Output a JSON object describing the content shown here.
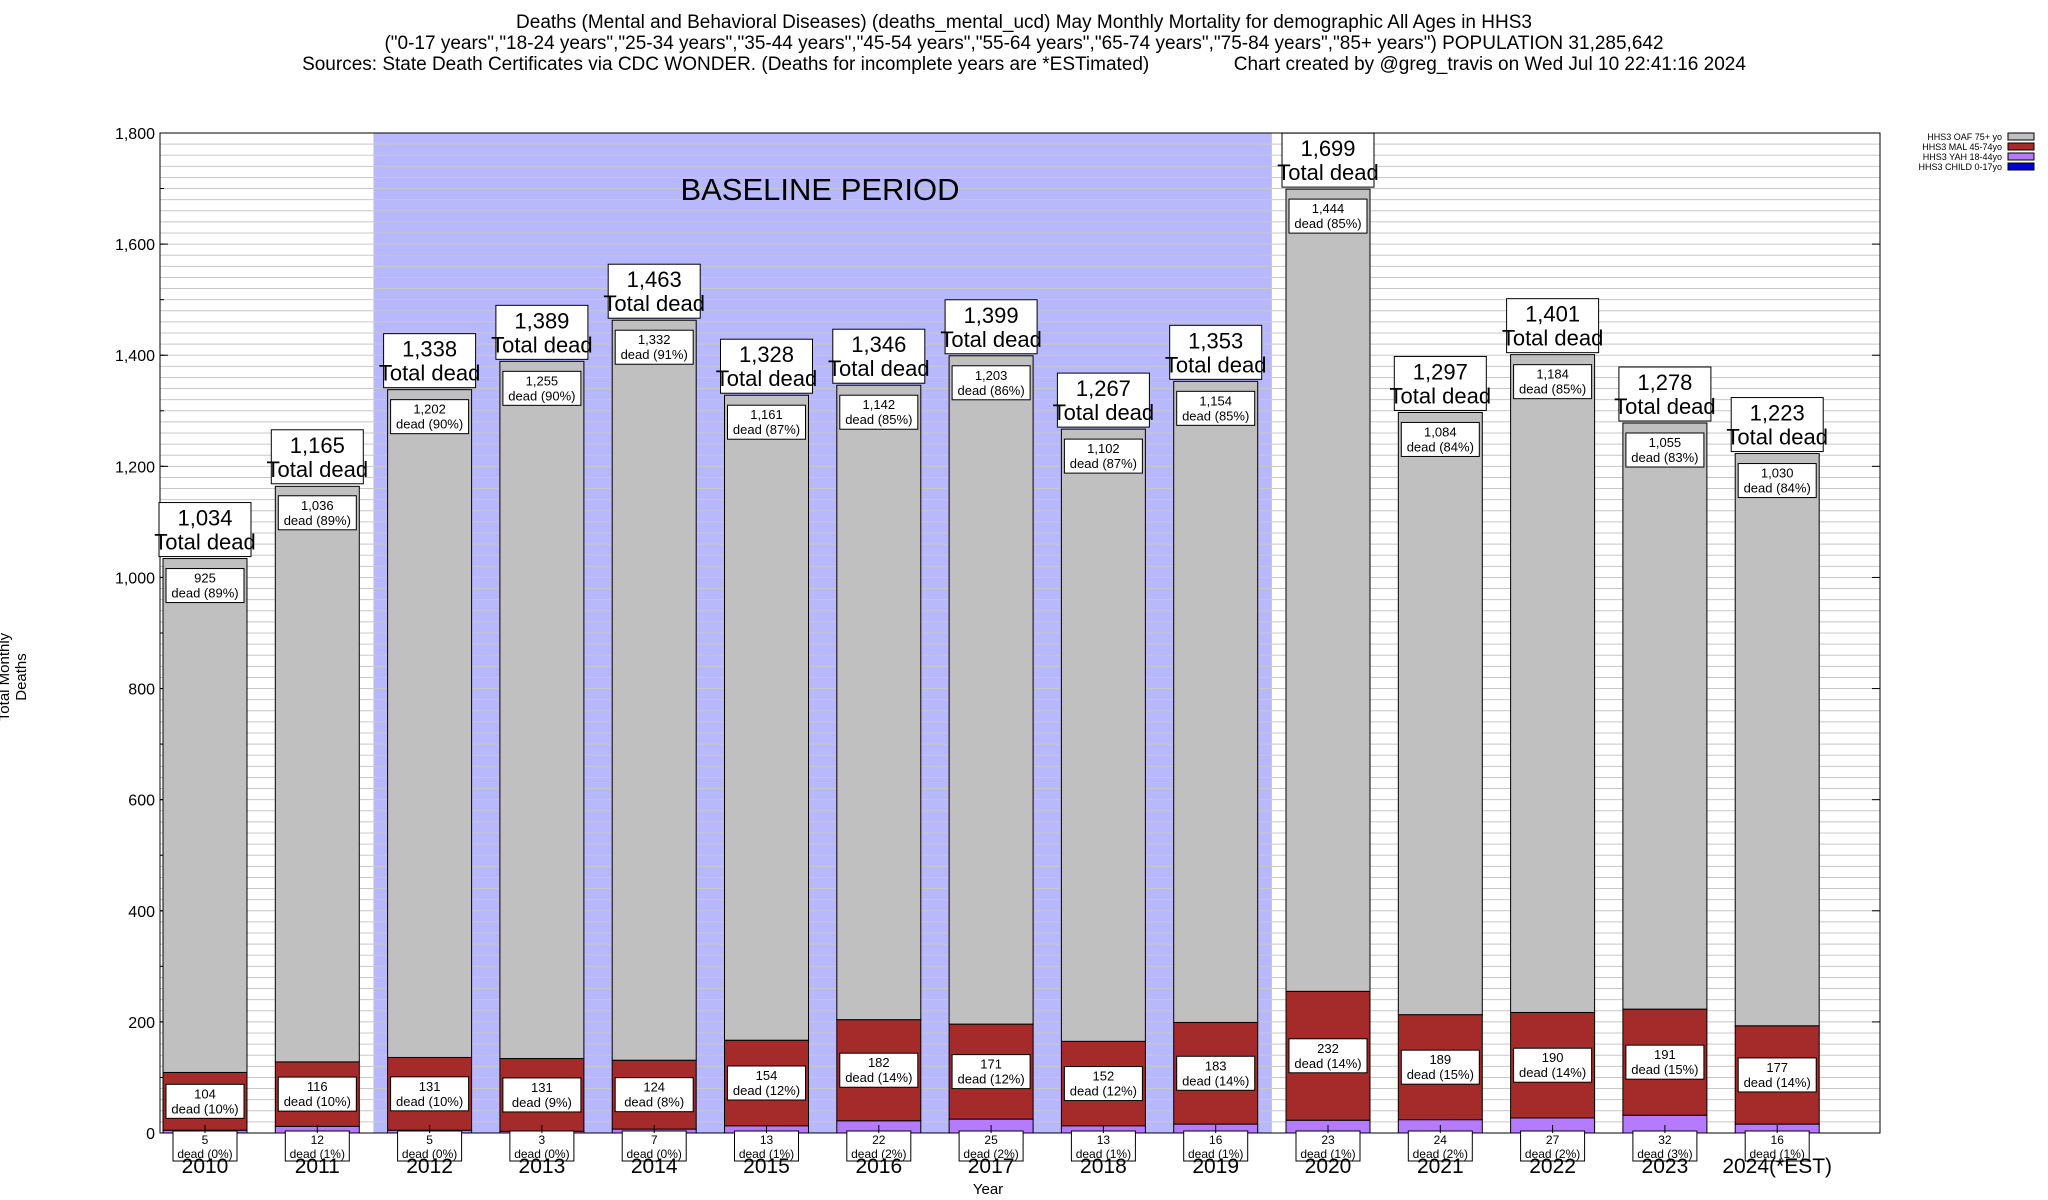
{
  "header": {
    "title_line1": "Deaths (Mental and Behavioral Diseases) (deaths_mental_ucd) May Monthly Mortality for demographic All Ages in HHS3",
    "title_line2": "(\"0-17 years\",\"18-24 years\",\"25-34 years\",\"35-44 years\",\"45-54 years\",\"55-64 years\",\"65-74 years\",\"75-84 years\",\"85+ years\") POPULATION 31,285,642",
    "title_line3": "Sources: State Death Certificates via CDC WONDER. (Deaths for incomplete years are *ESTimated)                Chart created by @greg_travis on Wed Jul 10 22:41:16 2024"
  },
  "chart_data": {
    "type": "bar",
    "stacked": true,
    "title": "Deaths (Mental and Behavioral Diseases) (deaths_mental_ucd) May Monthly Mortality for demographic All Ages in HHS3",
    "xlabel": "Year",
    "ylabel": "Total Monthly Deaths",
    "ylim": [
      0,
      1800
    ],
    "yticks": [
      0,
      200,
      400,
      600,
      800,
      1000,
      1200,
      1400,
      1600,
      1800
    ],
    "ytick_labels": [
      "0",
      "200",
      "400",
      "600",
      "800",
      "1,000",
      "1,200",
      "1,400",
      "1,600",
      "1,800"
    ],
    "grid": true,
    "legend_position": "top-right",
    "categories": [
      "2010",
      "2011",
      "2012",
      "2013",
      "2014",
      "2015",
      "2016",
      "2017",
      "2018",
      "2019",
      "2020",
      "2021",
      "2022",
      "2023",
      "2024(*EST)"
    ],
    "series": [
      {
        "name": "HHS3 CHILD 0-17yo",
        "color": "#0000cc",
        "values": [
          0,
          0,
          0,
          0,
          0,
          0,
          0,
          0,
          0,
          0,
          0,
          0,
          0,
          0,
          0
        ]
      },
      {
        "name": "HHS3 YAH 18-44yo",
        "color": "#b57bff",
        "values": [
          5,
          12,
          5,
          3,
          7,
          13,
          22,
          25,
          13,
          16,
          23,
          24,
          27,
          32,
          16
        ]
      },
      {
        "name": "HHS3 MAL 45-74yo",
        "color": "#a52a2a",
        "values": [
          104,
          116,
          131,
          131,
          124,
          154,
          182,
          171,
          152,
          183,
          232,
          189,
          190,
          191,
          177
        ]
      },
      {
        "name": "HHS3 OAF 75+ yo",
        "color": "#c0c0c0",
        "values": [
          925,
          1036,
          1202,
          1255,
          1332,
          1161,
          1142,
          1203,
          1102,
          1154,
          1444,
          1084,
          1184,
          1055,
          1030
        ]
      }
    ],
    "totals": [
      1034,
      1165,
      1338,
      1389,
      1463,
      1328,
      1346,
      1399,
      1267,
      1353,
      1699,
      1297,
      1401,
      1278,
      1223
    ],
    "total_labels": [
      "1,034",
      "1,165",
      "1,338",
      "1,389",
      "1,463",
      "1,328",
      "1,346",
      "1,399",
      "1,267",
      "1,353",
      "1,699",
      "1,297",
      "1,401",
      "1,278",
      "1,223"
    ],
    "total_suffix": "Total dead",
    "oaf_labels": [
      "925",
      "1,036",
      "1,202",
      "1,255",
      "1,332",
      "1,161",
      "1,142",
      "1,203",
      "1,102",
      "1,154",
      "1,444",
      "1,084",
      "1,184",
      "1,055",
      "1,030"
    ],
    "oaf_pct_labels": [
      "dead (89%)",
      "dead (89%)",
      "dead (90%)",
      "dead (90%)",
      "dead (91%)",
      "dead (87%)",
      "dead (85%)",
      "dead (86%)",
      "dead (87%)",
      "dead (85%)",
      "dead (85%)",
      "dead (84%)",
      "dead (85%)",
      "dead (83%)",
      "dead (84%)"
    ],
    "mal_labels": [
      "104",
      "116",
      "131",
      "131",
      "124",
      "154",
      "182",
      "171",
      "152",
      "183",
      "232",
      "189",
      "190",
      "191",
      "177"
    ],
    "mal_pct_labels": [
      "dead (10%)",
      "dead (10%)",
      "dead (10%)",
      "dead (9%)",
      "dead (8%)",
      "dead (12%)",
      "dead (14%)",
      "dead (12%)",
      "dead (12%)",
      "dead (14%)",
      "dead (14%)",
      "dead (15%)",
      "dead (14%)",
      "dead (15%)",
      "dead (14%)"
    ],
    "yah_labels": [
      "5",
      "12",
      "5",
      "3",
      "7",
      "13",
      "22",
      "25",
      "13",
      "16",
      "23",
      "24",
      "27",
      "32",
      "16"
    ],
    "yah_pct_labels": [
      "dead (0%)",
      "dead (1%)",
      "dead (0%)",
      "dead (0%)",
      "dead (0%)",
      "dead (1%)",
      "dead (2%)",
      "dead (2%)",
      "dead (1%)",
      "dead (1%)",
      "dead (1%)",
      "dead (2%)",
      "dead (2%)",
      "dead (3%)",
      "dead (1%)"
    ],
    "baseline_period": {
      "label": "BASELINE PERIOD",
      "start": "2012",
      "end": "2019",
      "color": "#b8b8ff"
    }
  }
}
